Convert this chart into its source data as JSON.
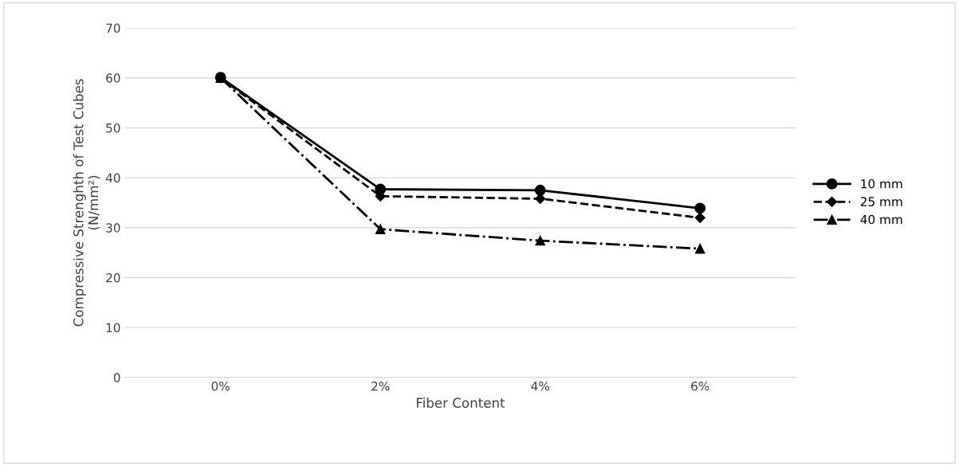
{
  "chart_data": {
    "type": "line",
    "xlabel": "Fiber Content",
    "ylabel": "Compressive Strenghth of Test Cubes\n(N/mm²)",
    "categories": [
      "0%",
      "2%",
      "4%",
      "6%"
    ],
    "series": [
      {
        "name": "10 mm",
        "color": "#000000",
        "marker": "circle",
        "line_style": "solid",
        "values": [
          60.1,
          37.7,
          37.5,
          33.9
        ]
      },
      {
        "name": "25 mm",
        "color": "#000000",
        "marker": "diamond",
        "line_style": "dashed",
        "values": [
          60,
          36.3,
          35.8,
          32
        ]
      },
      {
        "name": "40 mm",
        "color": "#000000",
        "marker": "triangle",
        "line_style": "dashdot",
        "values": [
          60,
          29.7,
          27.4,
          25.8
        ]
      }
    ],
    "ylim": [
      0,
      70
    ],
    "yticks": [
      0,
      10,
      20,
      30,
      40,
      50,
      60,
      70
    ],
    "grid": "y",
    "legend": "right"
  }
}
